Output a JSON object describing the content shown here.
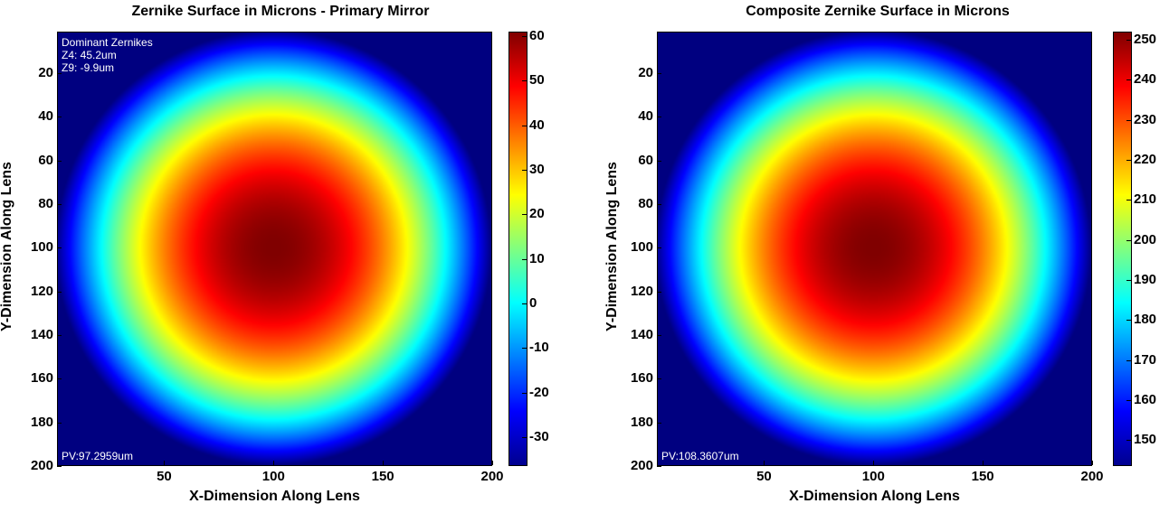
{
  "chart_data": [
    {
      "type": "heatmap",
      "title": "Zernike Surface in Microns - Primary Mirror",
      "xlabel": "X-Dimension Along Lens",
      "ylabel": "Y-Dimension Along Lens",
      "xlim": [
        1,
        200
      ],
      "ylim": [
        200,
        1
      ],
      "xticks": [
        "50",
        "100",
        "150",
        "200"
      ],
      "yticks": [
        "20",
        "40",
        "60",
        "80",
        "100",
        "120",
        "140",
        "160",
        "180",
        "200"
      ],
      "xtick_values": [
        50,
        100,
        150,
        200
      ],
      "ytick_values": [
        20,
        40,
        60,
        80,
        100,
        120,
        140,
        160,
        180,
        200
      ],
      "colormap": "jet",
      "colorbar": {
        "range": [
          -36.5,
          61
        ],
        "ticks": [
          "60",
          "50",
          "40",
          "30",
          "20",
          "10",
          "0",
          "-10",
          "-20",
          "-30"
        ],
        "tick_values": [
          60,
          50,
          40,
          30,
          20,
          10,
          0,
          -10,
          -20,
          -30
        ]
      },
      "surface": {
        "center": [
          100,
          100
        ],
        "peak": 61,
        "aperture_radius": 100,
        "edge": -36.5,
        "outside": -36.5
      },
      "annotations": {
        "top_left": [
          "Dominant Zernikes",
          "Z4: 45.2um",
          "Z9: -9.9um"
        ],
        "bottom_left": "PV:97.2959um"
      }
    },
    {
      "type": "heatmap",
      "title": "Composite Zernike Surface in Microns",
      "xlabel": "X-Dimension Along Lens",
      "ylabel": "Y-Dimension Along Lens",
      "xlim": [
        1,
        200
      ],
      "ylim": [
        200,
        1
      ],
      "xticks": [
        "50",
        "100",
        "150",
        "200"
      ],
      "yticks": [
        "20",
        "40",
        "60",
        "80",
        "100",
        "120",
        "140",
        "160",
        "180",
        "200"
      ],
      "xtick_values": [
        50,
        100,
        150,
        200
      ],
      "ytick_values": [
        20,
        40,
        60,
        80,
        100,
        120,
        140,
        160,
        180,
        200
      ],
      "colormap": "jet",
      "colorbar": {
        "range": [
          143.5,
          252
        ],
        "ticks": [
          "250",
          "240",
          "230",
          "220",
          "210",
          "200",
          "190",
          "180",
          "170",
          "160",
          "150"
        ],
        "tick_values": [
          250,
          240,
          230,
          220,
          210,
          200,
          190,
          180,
          170,
          160,
          150
        ]
      },
      "surface": {
        "center": [
          100,
          100
        ],
        "peak": 252,
        "aperture_radius": 100,
        "edge": 143.5,
        "outside": 143.5
      },
      "annotations": {
        "top_left": [],
        "bottom_left": "PV:108.3607um"
      }
    }
  ]
}
